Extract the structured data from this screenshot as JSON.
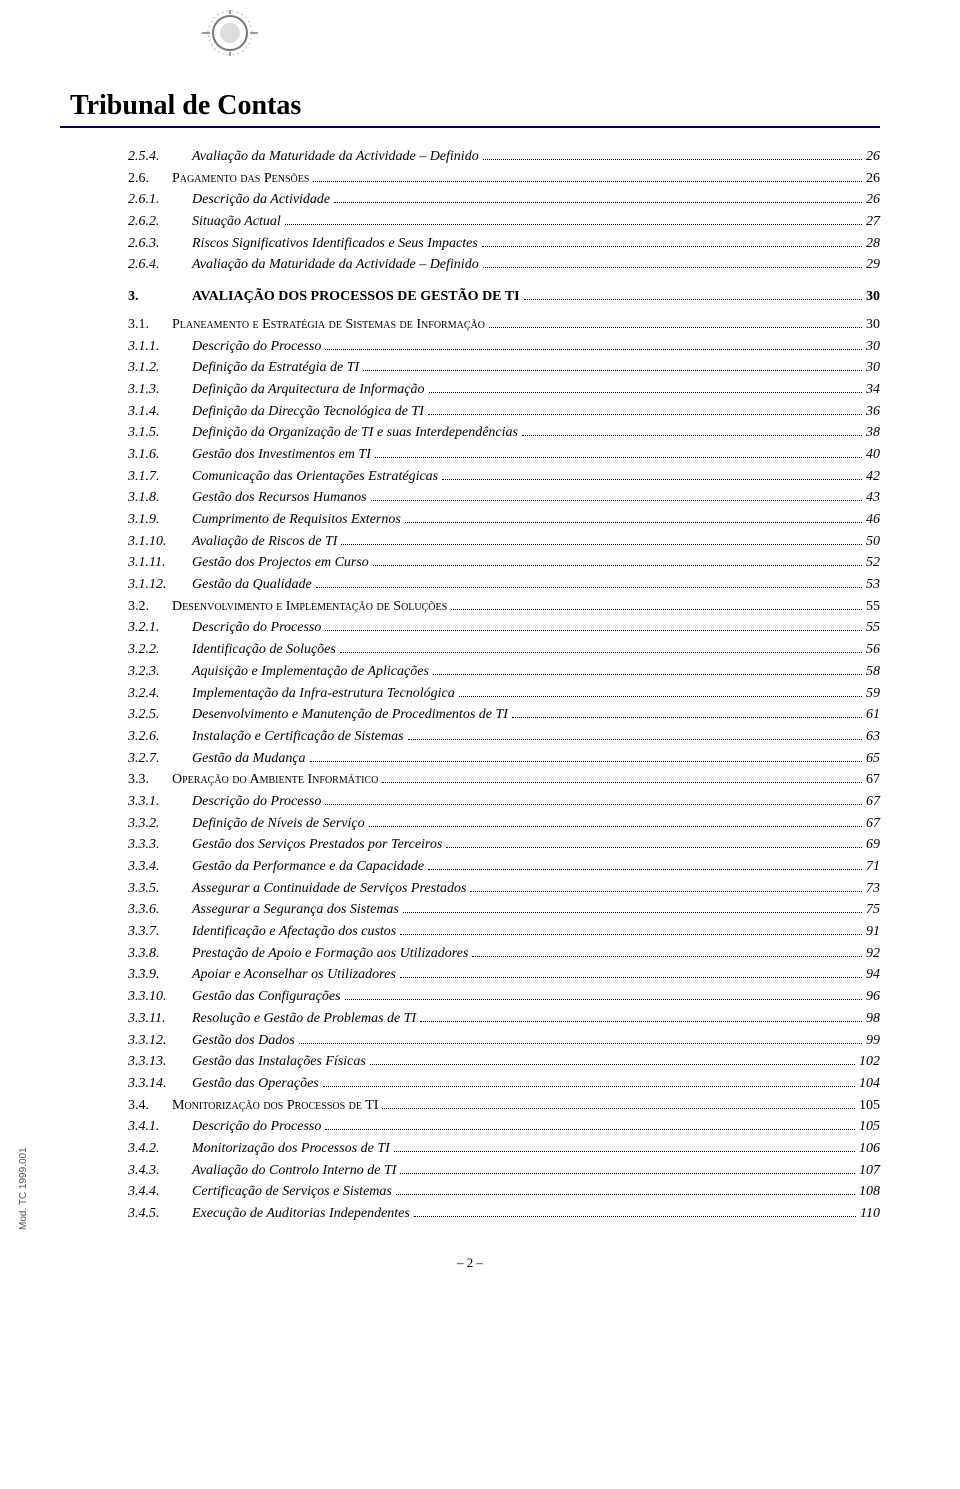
{
  "header": {
    "title": "Tribunal de Contas",
    "side_text": "Mod. TC 1999.001",
    "page_number": "– 2 –"
  },
  "toc": [
    {
      "level": "l2",
      "num": "2.5.4.",
      "label": "Avaliação da Maturidade da Actividade – Definido",
      "page": "26"
    },
    {
      "level": "l1",
      "num": "2.6.",
      "label": "Pagamento das Pensões",
      "page": "26"
    },
    {
      "level": "l2",
      "num": "2.6.1.",
      "label": "Descrição da Actividade",
      "page": "26"
    },
    {
      "level": "l2",
      "num": "2.6.2.",
      "label": "Situação Actual",
      "page": "27"
    },
    {
      "level": "l2",
      "num": "2.6.3.",
      "label": "Riscos Significativos Identificados e Seus Impactes",
      "page": "28"
    },
    {
      "level": "l2",
      "num": "2.6.4.",
      "label": "Avaliação da Maturidade da Actividade – Definido",
      "page": "29"
    },
    {
      "level": "l3",
      "num": "3.",
      "label": "AVALIAÇÃO DOS PROCESSOS DE GESTÃO DE TI",
      "page": "30"
    },
    {
      "level": "sec",
      "num": "3.1.",
      "label": "Planeamento e Estratégia de Sistemas de Informação",
      "page": "30"
    },
    {
      "level": "l2",
      "num": "3.1.1.",
      "label": "Descrição do Processo",
      "page": "30"
    },
    {
      "level": "l2",
      "num": "3.1.2.",
      "label": "Definição da Estratégia de TI",
      "page": "30"
    },
    {
      "level": "l2",
      "num": "3.1.3.",
      "label": "Definição da Arquitectura de Informação",
      "page": "34"
    },
    {
      "level": "l2",
      "num": "3.1.4.",
      "label": "Definição da Direcção Tecnológica de TI",
      "page": "36"
    },
    {
      "level": "l2",
      "num": "3.1.5.",
      "label": "Definição da Organização de TI e suas Interdependências",
      "page": "38"
    },
    {
      "level": "l2",
      "num": "3.1.6.",
      "label": "Gestão dos Investimentos em TI",
      "page": "40"
    },
    {
      "level": "l2",
      "num": "3.1.7.",
      "label": "Comunicação das Orientações Estratégicas",
      "page": "42"
    },
    {
      "level": "l2",
      "num": "3.1.8.",
      "label": "Gestão dos Recursos Humanos",
      "page": "43"
    },
    {
      "level": "l2",
      "num": "3.1.9.",
      "label": "Cumprimento de Requisitos Externos",
      "page": "46"
    },
    {
      "level": "l2",
      "num": "3.1.10.",
      "label": "Avaliação de Riscos de TI",
      "page": "50"
    },
    {
      "level": "l2",
      "num": "3.1.11.",
      "label": "Gestão dos Projectos em Curso",
      "page": "52"
    },
    {
      "level": "l2",
      "num": "3.1.12.",
      "label": "Gestão da Qualidade",
      "page": "53"
    },
    {
      "level": "sec",
      "num": "3.2.",
      "label": "Desenvolvimento e Implementação de Soluções",
      "page": "55"
    },
    {
      "level": "l2",
      "num": "3.2.1.",
      "label": "Descrição do Processo",
      "page": "55"
    },
    {
      "level": "l2",
      "num": "3.2.2.",
      "label": "Identificação de Soluções",
      "page": "56"
    },
    {
      "level": "l2",
      "num": "3.2.3.",
      "label": "Aquisição e Implementação de Aplicações",
      "page": "58"
    },
    {
      "level": "l2",
      "num": "3.2.4.",
      "label": "Implementação da Infra-estrutura Tecnológica",
      "page": "59"
    },
    {
      "level": "l2",
      "num": "3.2.5.",
      "label": "Desenvolvimento e Manutenção de Procedimentos de TI",
      "page": "61"
    },
    {
      "level": "l2",
      "num": "3.2.6.",
      "label": "Instalação e Certificação de Sistemas",
      "page": "63"
    },
    {
      "level": "l2",
      "num": "3.2.7.",
      "label": "Gestão da Mudança",
      "page": "65"
    },
    {
      "level": "sec",
      "num": "3.3.",
      "label": "Operação do Ambiente Informático",
      "page": "67"
    },
    {
      "level": "l2",
      "num": "3.3.1.",
      "label": "Descrição do Processo",
      "page": "67"
    },
    {
      "level": "l2",
      "num": "3.3.2.",
      "label": "Definição de Níveis de Serviço",
      "page": "67"
    },
    {
      "level": "l2",
      "num": "3.3.3.",
      "label": "Gestão dos Serviços Prestados por Terceiros",
      "page": "69"
    },
    {
      "level": "l2",
      "num": "3.3.4.",
      "label": "Gestão da Performance e da Capacidade",
      "page": "71"
    },
    {
      "level": "l2",
      "num": "3.3.5.",
      "label": "Assegurar a Continuidade de Serviços Prestados",
      "page": "73"
    },
    {
      "level": "l2",
      "num": "3.3.6.",
      "label": "Assegurar a Segurança dos Sistemas",
      "page": "75"
    },
    {
      "level": "l2",
      "num": "3.3.7.",
      "label": "Identificação e Afectação dos custos",
      "page": "91"
    },
    {
      "level": "l2",
      "num": "3.3.8.",
      "label": "Prestação de Apoio e Formação aos Utilizadores",
      "page": "92"
    },
    {
      "level": "l2",
      "num": "3.3.9.",
      "label": "Apoiar e Aconselhar os Utilizadores",
      "page": "94"
    },
    {
      "level": "l2",
      "num": "3.3.10.",
      "label": "Gestão das Configurações",
      "page": "96"
    },
    {
      "level": "l2",
      "num": "3.3.11.",
      "label": "Resolução e Gestão de Problemas de TI",
      "page": "98"
    },
    {
      "level": "l2",
      "num": "3.3.12.",
      "label": "Gestão dos Dados",
      "page": "99"
    },
    {
      "level": "l2",
      "num": "3.3.13.",
      "label": "Gestão das Instalações Físicas",
      "page": "102"
    },
    {
      "level": "l2",
      "num": "3.3.14.",
      "label": "Gestão das Operações",
      "page": "104"
    },
    {
      "level": "sec",
      "num": "3.4.",
      "label": "Monitorização dos Processos de TI",
      "page": "105"
    },
    {
      "level": "l2",
      "num": "3.4.1.",
      "label": "Descrição do Processo",
      "page": "105"
    },
    {
      "level": "l2",
      "num": "3.4.2.",
      "label": "Monitorização dos Processos de TI",
      "page": "106"
    },
    {
      "level": "l2",
      "num": "3.4.3.",
      "label": "Avaliação do Controlo Interno de TI",
      "page": "107"
    },
    {
      "level": "l2",
      "num": "3.4.4.",
      "label": "Certificação de Serviços e Sistemas",
      "page": "108"
    },
    {
      "level": "l2",
      "num": "3.4.5.",
      "label": "Execução de Auditorias Independentes",
      "page": "110"
    }
  ]
}
